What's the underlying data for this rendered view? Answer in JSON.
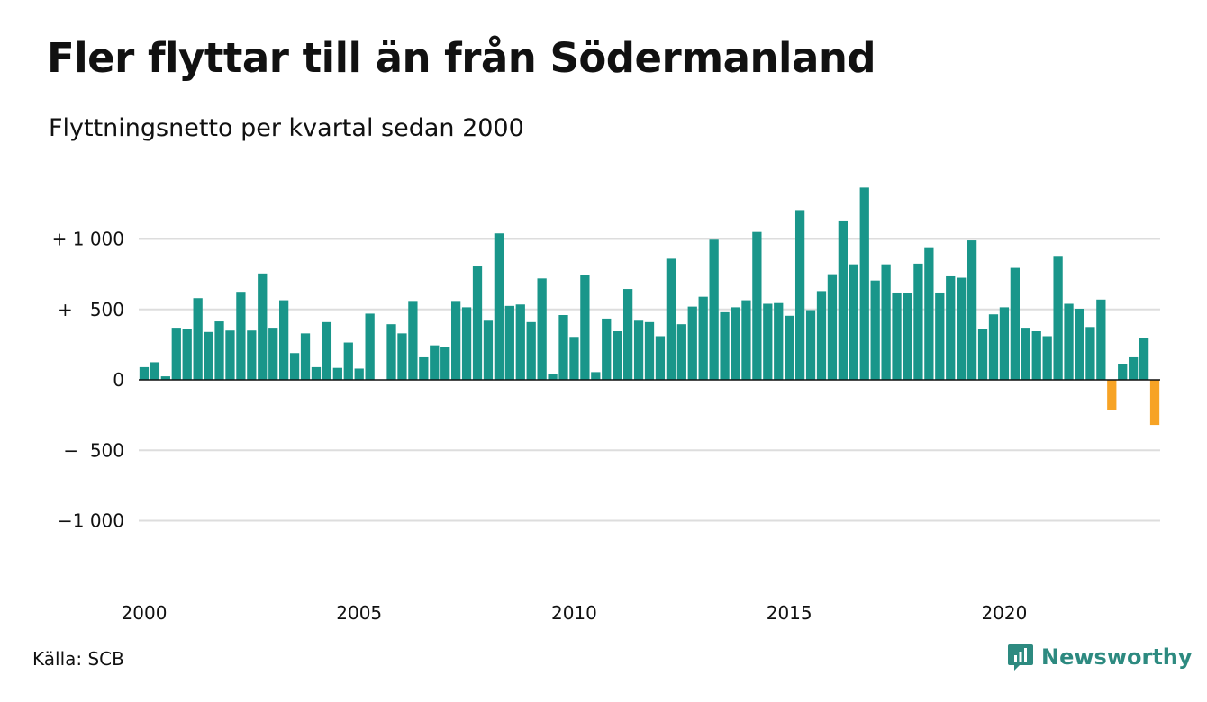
{
  "title": "Fler flyttar till än från Södermanland",
  "subtitle": "Flyttningsnetto per kvartal sedan 2000",
  "source": "Källa: SCB",
  "brand": "Newsworthy",
  "colors": {
    "positive": "#19968a",
    "negative": "#f7a325",
    "grid": "#dddddd",
    "brand": "#2d8a80"
  },
  "chart_data": {
    "type": "bar",
    "title": "Fler flyttar till än från Södermanland",
    "subtitle": "Flyttningsnetto per kvartal sedan 2000",
    "ylim": [
      -1000,
      1350
    ],
    "yticks": [
      {
        "value": 1000,
        "label": "+ 1 000"
      },
      {
        "value": 500,
        "label": "+   500"
      },
      {
        "value": 0,
        "label": "0"
      },
      {
        "value": -500,
        "label": "−  500"
      },
      {
        "value": -1000,
        "label": "−1 000"
      }
    ],
    "xticks": [
      "2000",
      "2005",
      "2010",
      "2015",
      "2020"
    ],
    "first_year": 2000,
    "grid": true,
    "values": [
      90,
      125,
      25,
      370,
      360,
      580,
      340,
      415,
      350,
      625,
      350,
      755,
      370,
      565,
      190,
      330,
      90,
      410,
      85,
      265,
      80,
      470,
      0,
      395,
      330,
      560,
      160,
      245,
      230,
      560,
      515,
      805,
      420,
      1040,
      525,
      535,
      410,
      720,
      40,
      460,
      305,
      745,
      55,
      435,
      345,
      645,
      420,
      410,
      310,
      860,
      395,
      520,
      590,
      995,
      480,
      515,
      565,
      1050,
      540,
      545,
      455,
      1205,
      495,
      630,
      750,
      1125,
      820,
      1365,
      705,
      820,
      620,
      615,
      825,
      935,
      620,
      735,
      725,
      990,
      360,
      465,
      515,
      795,
      370,
      345,
      310,
      880,
      540,
      505,
      375,
      570,
      -215,
      115,
      160,
      300,
      -320
    ]
  }
}
